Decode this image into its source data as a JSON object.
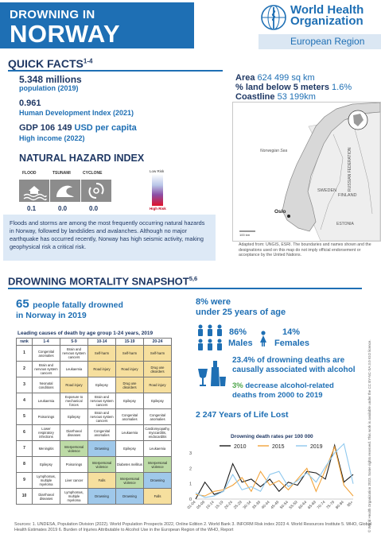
{
  "header": {
    "line1": "DROWNING IN",
    "line2": "NORWAY",
    "org_line1": "World Health",
    "org_line2": "Organization",
    "org_region": "European Region"
  },
  "quick_facts": {
    "title": "QUICK FACTS",
    "title_sup": "1-4",
    "population_value": "5.348 millions",
    "population_label": "population (2019)",
    "hdi_value": "0.961",
    "hdi_label": "Human Development Index (2021)",
    "gdp_label_prefix": "GDP",
    "gdp_value": "106 149",
    "gdp_unit": "USD per capita",
    "income_label": "High income (2022)",
    "area_label": "Area",
    "area_value": "624 499 sq km",
    "land_label": "% land below 5 meters",
    "land_value": "1.6%",
    "coast_label": "Coastline",
    "coast_value": "53 199km"
  },
  "map": {
    "labels": {
      "sea": "Norwegian Sea",
      "sweden": "SWEDEN",
      "finland": "FINLAND",
      "russia": "RUSSIAN FEDERATION",
      "estonia": "ESTONIA",
      "capital": "Oslo",
      "scale": "100 km"
    },
    "caption": "Adapted from: UNGIS, ESRI. The boundaries and names shown and the designations used on this map do not imply official endorsement or acceptance by the United Nations."
  },
  "hazard": {
    "title": "NATURAL HAZARD INDEX",
    "items": [
      {
        "label": "FLOOD",
        "value": "0.1",
        "icon": "flood-icon"
      },
      {
        "label": "TSUNAMI",
        "value": "0.0",
        "icon": "tsunami-icon"
      },
      {
        "label": "CYCLONE",
        "value": "0.0",
        "icon": "cyclone-icon"
      }
    ],
    "scale_low": "Low Risk",
    "scale_high": "High Risk",
    "description": "Floods and storms are among the most frequently occurring natural hazards in Norway, followed by landslides and avalanches. Although no major earthquake has occurred recently, Norway has high seismic activity, making geophysical risk a critical risk."
  },
  "snapshot": {
    "title": "DROWNING MORTALITY SNAPSHOT",
    "title_sup": "5,6",
    "deaths_number": "65",
    "deaths_text": "people fatally drowned",
    "deaths_sub": "in Norway in 2019",
    "under25_pct": "8% were",
    "under25_label": "under 25 years of age",
    "males_pct": "86%",
    "males_label": "Males",
    "females_pct": "14%",
    "females_label": "Females",
    "alcohol_pct": "23.4%",
    "alcohol_text1": "of drowning deaths are",
    "alcohol_text2": "causally associated with alcohol",
    "decrease_pct": "3%",
    "decrease_text1": "decrease alcohol-related",
    "decrease_text2": "deaths from 2000 to 2019",
    "yll_value": "2 247",
    "yll_label": "Years of Life Lost"
  },
  "causes_table": {
    "title": "Leading causes of death by age group 1-24 years, 2019",
    "headers": [
      "rank",
      "1-4",
      "5-9",
      "10-14",
      "15-19",
      "20-24"
    ],
    "rows": [
      [
        "1",
        "Congenital anomalies",
        "Brain and nervous system cancers",
        "Self-harm",
        "Self-harm",
        "Self-harm"
      ],
      [
        "2",
        "Brain and nervous system cancers",
        "Leukaemia",
        "Road injury",
        "Road injury",
        "Drug use disorders"
      ],
      [
        "3",
        "Neonatal conditions",
        "Road injury",
        "Epilepsy",
        "Drug use disorders",
        "Road injury"
      ],
      [
        "4",
        "Leukaemia",
        "Exposure to mechanical forces",
        "Brain and nervous system cancers",
        "Epilepsy",
        "Epilepsy"
      ],
      [
        "5",
        "Poisonings",
        "Epilepsy",
        "Brain and nervous system cancers",
        "Congenital anomalies",
        "Congenital anomalies"
      ],
      [
        "6",
        "Lower respiratory infections",
        "Diarrhoeal diseases",
        "Congenital anomalies",
        "Leukaemia",
        "Cardiomyopathy, myocarditis, endocarditis"
      ],
      [
        "7",
        "Meningitis",
        "Interpersonal violence",
        "Drowning",
        "Epilepsy",
        "Leukaemia"
      ],
      [
        "8",
        "Epilepsy",
        "Poisonings",
        "Interpersonal violence",
        "Diabetes mellitus",
        "Interpersonal violence"
      ],
      [
        "9",
        "Lymphomas, multiple myeloma",
        "Liver cancer",
        "Falls",
        "Interpersonal violence",
        "Drowning"
      ],
      [
        "10",
        "Diarrhoeal diseases",
        "Lymphomas, multiple myeloma",
        "Drowning",
        "Drowning",
        "Falls"
      ]
    ],
    "highlight_colors": {
      "Self-harm": "#f6df9e",
      "Road injury": "#f6df9e",
      "Drug use disorders": "#f6df9e",
      "Drowning": "#9fc8ea",
      "Interpersonal violence": "#bddba6",
      "Falls": "#f6df9e",
      "Poisonings": "#ffffff"
    }
  },
  "chart_data": {
    "type": "line",
    "title": "Drowning death rates per 100 000",
    "categories": [
      "01-04",
      "05-09",
      "10-14",
      "15-19",
      "20-24",
      "25-29",
      "30-34",
      "35-39",
      "40-44",
      "45-49",
      "50-54",
      "55-59",
      "60-64",
      "65-69",
      "70-74",
      "75-79",
      "80-84",
      "85+"
    ],
    "ylim": [
      0,
      3
    ],
    "yticks": [
      0,
      1,
      2,
      3
    ],
    "series": [
      {
        "name": "2010",
        "color": "#1a1a1a",
        "values": [
          0.0,
          1.1,
          0.3,
          0.5,
          2.3,
          1.1,
          1.3,
          0.8,
          1.3,
          0.5,
          1.1,
          0.9,
          1.8,
          1.7,
          1.3,
          3.5,
          1.1,
          1.6
        ]
      },
      {
        "name": "2015",
        "color": "#f2a33a",
        "values": [
          0.3,
          0.2,
          0.5,
          0.6,
          0.9,
          1.4,
          0.5,
          1.8,
          0.9,
          1.2,
          0.6,
          1.3,
          2.0,
          0.5,
          1.9,
          3.4,
          0.9,
          0.2
        ]
      },
      {
        "name": "2019",
        "color": "#8ec8ee",
        "values": [
          0.4,
          0.1,
          0.2,
          0.5,
          1.6,
          0.6,
          0.8,
          0.5,
          1.6,
          1.8,
          0.8,
          1.2,
          1.7,
          1.1,
          2.1,
          3.0,
          3.6,
          1.0
        ]
      }
    ],
    "legend": "top"
  },
  "sources": "Sources: 1. UNDESA, Population Division (2022). World Population Prospects 2022, Online Edition 2. World Bank 3. INFORM Risk index 2023 4. World Resources Institute 5. WHO, Global Health Estimates 2019 6. Burden of Injuries Attributable to Alcohol Use in the European Region of the WHO, Report",
  "license_note": "© World Health Organization 2023. Some rights reserved. This work is available under the CC BY-NC-SA 3.0 IGO licence."
}
